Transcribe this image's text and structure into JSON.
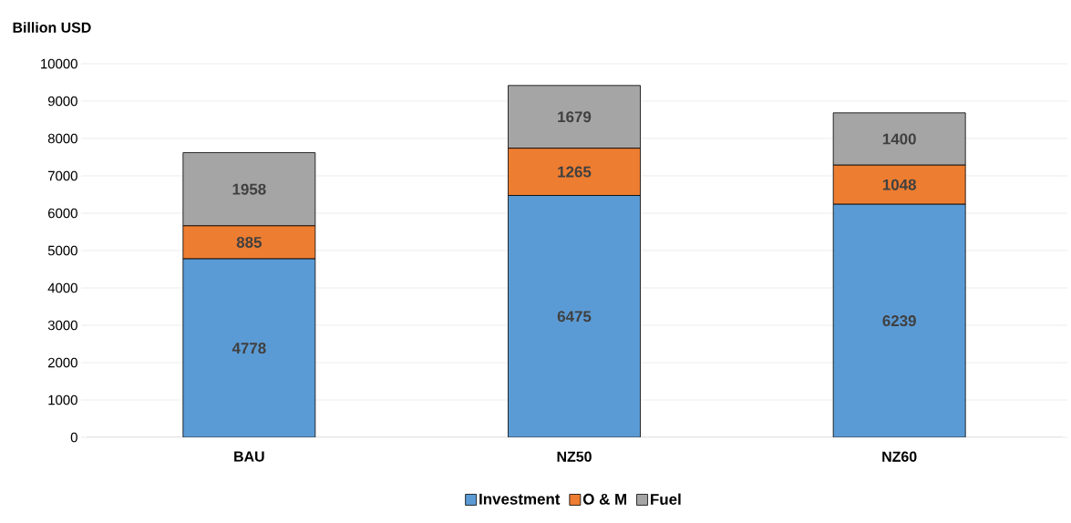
{
  "chart_data": {
    "type": "bar",
    "stacked": true,
    "ylabel": "Billion USD",
    "categories": [
      "BAU",
      "NZ50",
      "NZ60"
    ],
    "series": [
      {
        "name": "Investment",
        "color": "#5b9bd5",
        "values": [
          4778,
          6475,
          6239
        ]
      },
      {
        "name": "O & M",
        "color": "#ed7d31",
        "values": [
          885,
          1265,
          1048
        ]
      },
      {
        "name": "Fuel",
        "color": "#a5a5a5",
        "values": [
          1958,
          1679,
          1400
        ]
      }
    ],
    "ylim": [
      0,
      10000
    ],
    "yticks": [
      0,
      1000,
      2000,
      3000,
      4000,
      5000,
      6000,
      7000,
      8000,
      9000,
      10000
    ],
    "grid": "y",
    "legend": "bottom",
    "data_labels": true
  }
}
